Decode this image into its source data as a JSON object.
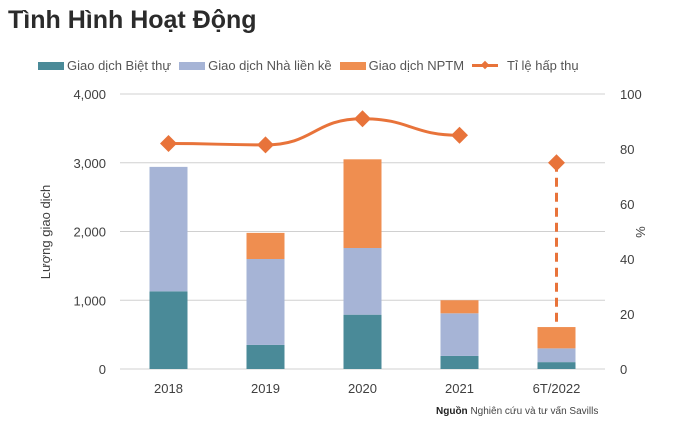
{
  "title": "Tình Hình Hoạt Động",
  "source": {
    "label": "Nguồn",
    "text": "Nghiên cứu và tư vấn Savills"
  },
  "chart_data": {
    "type": "bar",
    "stacked": true,
    "categories": [
      "2018",
      "2019",
      "2020",
      "2021",
      "6T/2022"
    ],
    "series": [
      {
        "name": "Giao dịch Biệt thự",
        "color": "#4a8a98",
        "values": [
          1130,
          350,
          790,
          190,
          100
        ]
      },
      {
        "name": "Giao dịch Nhà liền kề",
        "color": "#a6b4d6",
        "values": [
          1810,
          1250,
          970,
          620,
          200
        ]
      },
      {
        "name": "Giao dịch NPTM",
        "color": "#ef8e50",
        "values": [
          0,
          380,
          1290,
          190,
          310
        ]
      }
    ],
    "line": {
      "name": "Tỉ lệ hấp thụ",
      "color": "#e8733a",
      "axis": "right",
      "values": [
        82,
        81.5,
        91,
        85,
        75
      ],
      "last_segment_dashed": true
    },
    "ylabel": "Lượng giao dịch",
    "ylim": [
      0,
      4000
    ],
    "yticks": [
      "0",
      "1,000",
      "2,000",
      "3,000",
      "4,000"
    ],
    "y2label": "%",
    "y2lim": [
      0,
      100
    ],
    "y2ticks": [
      "0",
      "20",
      "40",
      "60",
      "80",
      "100"
    ],
    "grid": true,
    "legend": "top"
  }
}
